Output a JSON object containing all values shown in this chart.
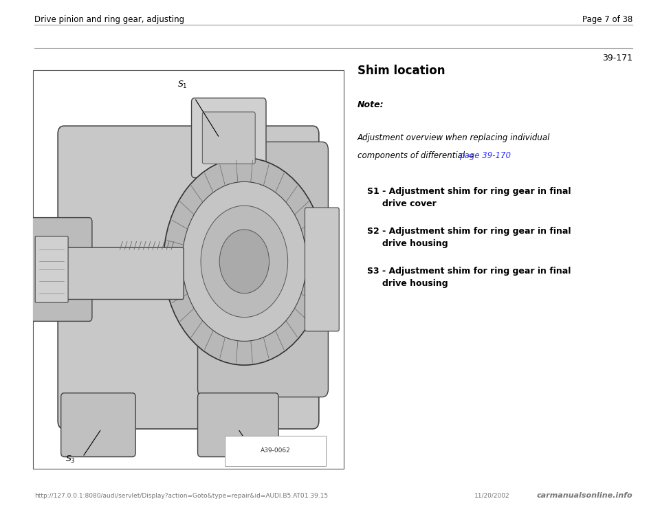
{
  "bg_color": "#ffffff",
  "page_width": 9.6,
  "page_height": 7.42,
  "header_left": "Drive pinion and ring gear, adjusting",
  "header_right": "Page 7 of 38",
  "section_number": "39-171",
  "title": "Shim location",
  "note_label": "Note:",
  "note_line1": "Adjustment overview when replacing individual",
  "note_line2_before": "components of differential ⇒ ",
  "note_link": "page 39-170",
  "note_link_color": "#3333ff",
  "note_after": " .",
  "items": [
    {
      "label": "S1",
      "desc1": " - Adjustment shim for ring gear in final",
      "desc2": "drive cover"
    },
    {
      "label": "S2",
      "desc1": " - Adjustment shim for ring gear in final",
      "desc2": "drive housing"
    },
    {
      "label": "S3",
      "desc1": " - Adjustment shim for ring gear in final",
      "desc2": "drive housing"
    }
  ],
  "image_label": "A39-0062",
  "footer_url": "http://127.0.0.1:8080/audi/servlet/Display?action=Goto&type=repair&id=AUDI.B5.AT01.39.15",
  "footer_date": "11/20/2002",
  "footer_logo": "carmanualsonline.info",
  "text_color": "#000000",
  "gray_text": "#777777",
  "header_font_size": 8.5,
  "title_font_size": 12,
  "note_label_font_size": 9,
  "body_font_size": 8.5,
  "item_label_font_size": 9,
  "footer_font_size": 6.5
}
